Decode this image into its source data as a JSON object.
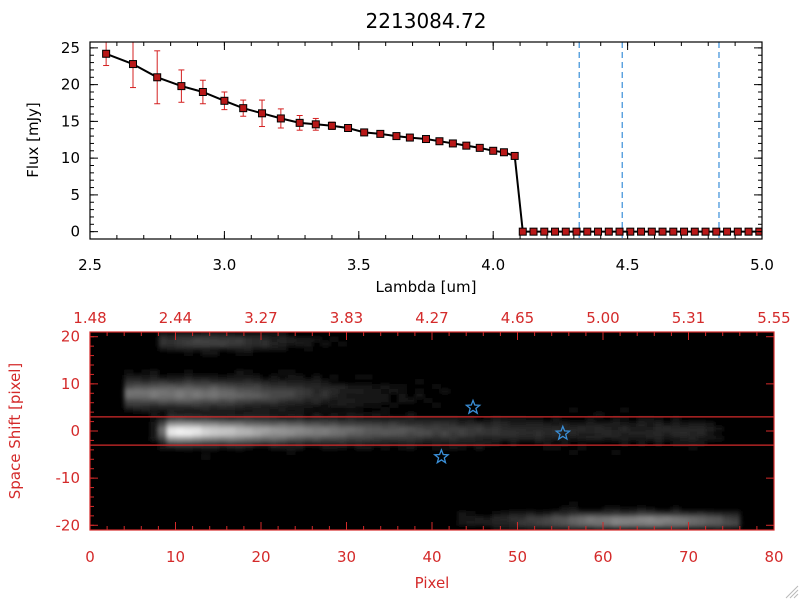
{
  "colors": {
    "axis_black": "#000000",
    "spectrum_line": "#000000",
    "marker_fill": "#b81818",
    "error_bar": "#d42020",
    "reference_line": "#3a8fd8",
    "bottom_axes": "#d42a2a",
    "slit_line": "#d42a2a",
    "star_marker": "#3a8fd8"
  },
  "chart_data": [
    {
      "type": "line",
      "title": "2213084.72",
      "xlabel": "Lambda [um]",
      "ylabel": "Flux [mJy]",
      "xlim": [
        2.5,
        5.0
      ],
      "ylim": [
        -1,
        25.8
      ],
      "x_ticks": [
        2.5,
        3.0,
        3.5,
        4.0,
        4.5,
        5.0
      ],
      "x_tick_labels": [
        "2.5",
        "3.0",
        "3.5",
        "4.0",
        "4.5",
        "5.0"
      ],
      "y_ticks": [
        0,
        5,
        10,
        15,
        20,
        25
      ],
      "y_tick_labels": [
        "0",
        "5",
        "10",
        "15",
        "20",
        "25"
      ],
      "grid": false,
      "reference_lines_x": [
        4.32,
        4.48,
        4.84
      ],
      "zero_line_y": 0,
      "series": [
        {
          "x": [
            2.56,
            2.66,
            2.75,
            2.84,
            2.92,
            3.0,
            3.07,
            3.14,
            3.21,
            3.28,
            3.34,
            3.4,
            3.46,
            3.52,
            3.58,
            3.64,
            3.69,
            3.75,
            3.8,
            3.85,
            3.9,
            3.95,
            4.0,
            4.04,
            4.08,
            4.11,
            4.15,
            4.19,
            4.23,
            4.27,
            4.31,
            4.35,
            4.39,
            4.43,
            4.47,
            4.51,
            4.55,
            4.59,
            4.63,
            4.67,
            4.71,
            4.75,
            4.79,
            4.83,
            4.87,
            4.91,
            4.95,
            4.99
          ],
          "y": [
            24.2,
            22.8,
            21.0,
            19.8,
            19.0,
            17.8,
            16.8,
            16.1,
            15.4,
            14.8,
            14.6,
            14.4,
            14.1,
            13.5,
            13.3,
            13.0,
            12.8,
            12.6,
            12.3,
            12.0,
            11.7,
            11.4,
            11.0,
            10.8,
            10.3,
            0,
            0,
            0,
            0,
            0,
            0,
            0,
            0,
            0,
            0,
            0,
            0,
            0,
            0,
            0,
            0,
            0,
            0,
            0,
            0,
            0,
            0,
            0
          ],
          "yerr": [
            1.6,
            3.2,
            3.6,
            2.2,
            1.6,
            1.2,
            1.1,
            1.8,
            1.3,
            1.0,
            0.8,
            0.5,
            0.4,
            0.4,
            0.3,
            0.3,
            0.3,
            0.3,
            0.3,
            0.3,
            0.3,
            0.3,
            0.3,
            0.3,
            0.3,
            0,
            0,
            0,
            0,
            0,
            0,
            0,
            0,
            0,
            0,
            0,
            0,
            0,
            0,
            0,
            0,
            0,
            0,
            0,
            0,
            0,
            0,
            0
          ]
        }
      ]
    },
    {
      "type": "heatmap",
      "xlabel": "Pixel",
      "ylabel": "Space Shift [pixel]",
      "xlim": [
        0,
        80
      ],
      "ylim": [
        -21,
        21
      ],
      "x_ticks": [
        0,
        10,
        20,
        30,
        40,
        50,
        60,
        70,
        80
      ],
      "x_tick_labels": [
        "0",
        "10",
        "20",
        "30",
        "40",
        "50",
        "60",
        "70",
        "80"
      ],
      "y_ticks": [
        -20,
        -10,
        0,
        10,
        20
      ],
      "y_tick_labels": [
        "-20",
        "-10",
        "0",
        "10",
        "20"
      ],
      "top_axis_ticks": [
        0,
        10,
        20,
        30,
        40,
        50,
        60,
        70,
        80
      ],
      "top_axis_tick_labels": [
        "1.48",
        "2.44",
        "3.27",
        "3.83",
        "4.27",
        "4.65",
        "5.00",
        "5.31",
        "5.55"
      ],
      "slit_lines_y": [
        3,
        -3
      ],
      "markers": [
        {
          "symbol": "star",
          "x": 44.8,
          "y": 5
        },
        {
          "symbol": "star",
          "x": 55.3,
          "y": -0.5
        },
        {
          "symbol": "star",
          "x": 41.1,
          "y": -5.5
        }
      ],
      "colormap": "grayscale",
      "features": [
        {
          "x0": 8,
          "x1": 72,
          "y": 0,
          "width": 2.2,
          "peak_x": 10,
          "peak": 1.0,
          "kind": "trace"
        },
        {
          "x0": 6,
          "x1": 42,
          "y": 8,
          "width": 2.5,
          "peak_x": 10,
          "peak": 0.45,
          "kind": "band"
        },
        {
          "x0": 10,
          "x1": 30,
          "y": 19,
          "width": 1.5,
          "peak_x": 14,
          "peak": 0.25,
          "kind": "band"
        },
        {
          "x0": 45,
          "x1": 74,
          "y": -19,
          "width": 1.5,
          "peak_x": 64,
          "peak": 0.55,
          "kind": "band"
        }
      ]
    }
  ]
}
